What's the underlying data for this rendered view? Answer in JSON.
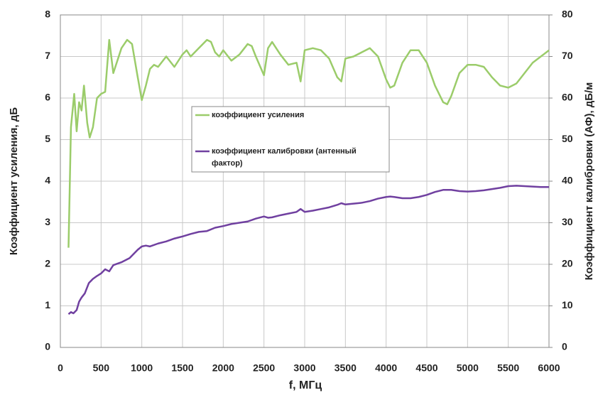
{
  "chart_data": {
    "type": "line",
    "xlabel": "f, МГц",
    "ylabel": "Коэффициент усиления, дБ",
    "y2label": "Коэффициент калибровки (АФ), дБ/м",
    "xlim": [
      0,
      6000
    ],
    "xticks": [
      0,
      500,
      1000,
      1500,
      2000,
      2500,
      3000,
      3500,
      4000,
      4500,
      5000,
      5500,
      6000
    ],
    "ylim": [
      0,
      8
    ],
    "yticks": [
      0,
      1,
      2,
      3,
      4,
      5,
      6,
      7,
      8
    ],
    "y2lim": [
      0,
      80
    ],
    "y2ticks": [
      0,
      10,
      20,
      30,
      40,
      50,
      60,
      70,
      80
    ],
    "grid": true,
    "series": [
      {
        "name": "коэффициент усиления",
        "color": "#9bcc6a",
        "axis": "y",
        "x": [
          100,
          130,
          170,
          200,
          230,
          260,
          290,
          330,
          360,
          400,
          450,
          500,
          550,
          600,
          650,
          700,
          750,
          820,
          880,
          950,
          1000,
          1050,
          1100,
          1150,
          1200,
          1300,
          1400,
          1500,
          1550,
          1600,
          1700,
          1800,
          1850,
          1900,
          1950,
          2000,
          2100,
          2200,
          2300,
          2350,
          2400,
          2500,
          2550,
          2600,
          2700,
          2800,
          2900,
          2950,
          3000,
          3100,
          3200,
          3300,
          3400,
          3450,
          3500,
          3600,
          3700,
          3800,
          3900,
          4000,
          4050,
          4100,
          4200,
          4300,
          4400,
          4500,
          4600,
          4700,
          4750,
          4800,
          4900,
          5000,
          5100,
          5200,
          5300,
          5400,
          5500,
          5600,
          5700,
          5800,
          5900,
          6000
        ],
        "values": [
          2.4,
          5.3,
          6.1,
          5.2,
          5.9,
          5.7,
          6.3,
          5.4,
          5.05,
          5.3,
          6.0,
          6.1,
          6.15,
          7.4,
          6.6,
          6.9,
          7.2,
          7.4,
          7.3,
          6.5,
          5.95,
          6.3,
          6.7,
          6.8,
          6.75,
          7.0,
          6.75,
          7.05,
          7.15,
          7.0,
          7.2,
          7.4,
          7.35,
          7.1,
          7.0,
          7.15,
          6.9,
          7.05,
          7.3,
          7.25,
          7.0,
          6.55,
          7.2,
          7.35,
          7.05,
          6.8,
          6.85,
          6.4,
          7.15,
          7.2,
          7.15,
          6.95,
          6.5,
          6.4,
          6.95,
          7.0,
          7.1,
          7.2,
          7.0,
          6.45,
          6.25,
          6.3,
          6.85,
          7.15,
          7.15,
          6.85,
          6.3,
          5.9,
          5.85,
          6.05,
          6.6,
          6.8,
          6.8,
          6.75,
          6.5,
          6.3,
          6.25,
          6.35,
          6.6,
          6.85,
          7.0,
          7.15
        ]
      },
      {
        "name": "коэффициент калибровки (антенный фактор)",
        "color": "#7040a0",
        "axis": "y2",
        "x": [
          100,
          130,
          160,
          200,
          230,
          260,
          300,
          350,
          400,
          450,
          500,
          550,
          600,
          650,
          750,
          850,
          950,
          1000,
          1050,
          1100,
          1200,
          1300,
          1400,
          1500,
          1600,
          1700,
          1800,
          1900,
          2000,
          2100,
          2200,
          2300,
          2400,
          2500,
          2550,
          2600,
          2700,
          2800,
          2900,
          2950,
          3000,
          3100,
          3200,
          3300,
          3400,
          3450,
          3500,
          3600,
          3700,
          3800,
          3900,
          4000,
          4050,
          4100,
          4200,
          4300,
          4400,
          4500,
          4600,
          4700,
          4800,
          4900,
          5000,
          5100,
          5200,
          5300,
          5400,
          5500,
          5600,
          5700,
          5800,
          5900,
          6000
        ],
        "values": [
          8,
          8.5,
          8.2,
          9,
          11,
          12,
          13,
          15.5,
          16.5,
          17.2,
          17.8,
          18.8,
          18.3,
          19.8,
          20.5,
          21.5,
          23.5,
          24.3,
          24.5,
          24.3,
          25,
          25.5,
          26.2,
          26.7,
          27.3,
          27.8,
          28,
          28.8,
          29.2,
          29.7,
          30,
          30.3,
          31,
          31.5,
          31.2,
          31.3,
          31.8,
          32.2,
          32.6,
          33.3,
          32.6,
          32.9,
          33.3,
          33.7,
          34.3,
          34.7,
          34.4,
          34.6,
          34.8,
          35.2,
          35.8,
          36.2,
          36.3,
          36.2,
          35.9,
          35.9,
          36.2,
          36.7,
          37.4,
          37.9,
          37.9,
          37.6,
          37.5,
          37.6,
          37.8,
          38.1,
          38.4,
          38.8,
          38.9,
          38.8,
          38.7,
          38.6,
          38.6
        ]
      }
    ]
  }
}
